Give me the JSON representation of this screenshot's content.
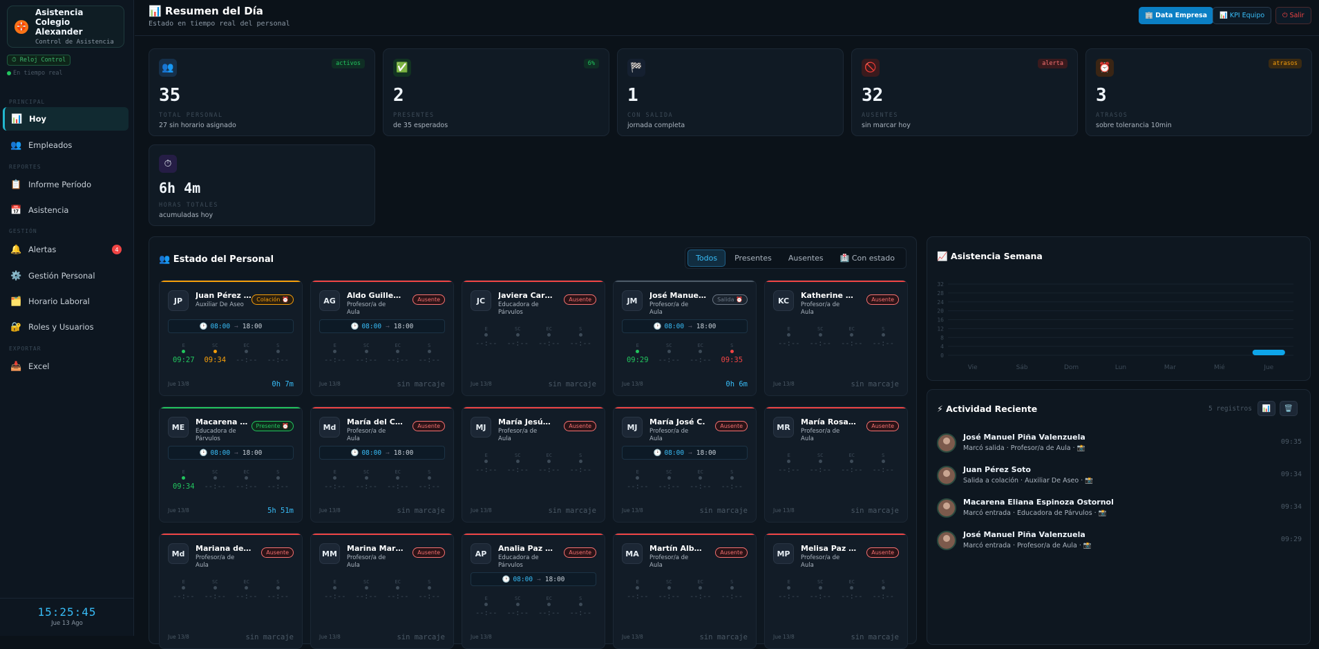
{
  "brand": {
    "title": "Asistencia Colegio Alexander",
    "subtitle": "Control de Asistencia",
    "logo": "🛟"
  },
  "clock_button": "⏱ Reloj Control",
  "live": "En tiempo real",
  "nav": {
    "sec_principal": "PRINCIPAL",
    "sec_reportes": "REPORTES",
    "sec_gestion": "GESTIÓN",
    "sec_exportar": "EXPORTAR",
    "items": [
      {
        "label": "Hoy",
        "icon": "📊"
      },
      {
        "label": "Empleados",
        "icon": "👥"
      },
      {
        "label": "Informe Período",
        "icon": "📋"
      },
      {
        "label": "Asistencia",
        "icon": "📅"
      },
      {
        "label": "Alertas",
        "icon": "🔔",
        "badge": "4"
      },
      {
        "label": "Gestión Personal",
        "icon": "⚙️"
      },
      {
        "label": "Horario Laboral",
        "icon": "🗂️"
      },
      {
        "label": "Roles y Usuarios",
        "icon": "🔐"
      },
      {
        "label": "Excel",
        "icon": "📥"
      }
    ]
  },
  "footer": {
    "time": "15:25:45",
    "date": "Jue 13 Ago"
  },
  "header": {
    "title": "📊 Resumen del Día",
    "subtitle": "Estado en tiempo real del personal",
    "btn_data": "🏢 Data Empresa",
    "btn_kpi": "📊 KPI Equipo",
    "btn_exit": "⏻ Salir"
  },
  "kpis": [
    {
      "icon": "👥",
      "tag": "activos",
      "value": "35",
      "label": "TOTAL PERSONAL",
      "sub": "27 sin horario asignado"
    },
    {
      "icon": "✅",
      "tag": "6%",
      "value": "2",
      "label": "PRESENTES",
      "sub": "de 35 esperados"
    },
    {
      "icon": "🏁",
      "tag": "",
      "value": "1",
      "label": "CON SALIDA",
      "sub": "jornada completa"
    },
    {
      "icon": "🚫",
      "tag": "alerta",
      "value": "32",
      "label": "AUSENTES",
      "sub": "sin marcar hoy"
    },
    {
      "icon": "⏰",
      "tag": "atrasos",
      "value": "3",
      "label": "ATRASOS",
      "sub": "sobre tolerancia 10min"
    },
    {
      "icon": "⏱",
      "tag": "",
      "value": "6h 4m",
      "label": "HORAS TOTALES",
      "sub": "acumuladas hoy"
    }
  ],
  "staff": {
    "title": "👥 Estado del Personal",
    "tabs": [
      "Todos",
      "Presentes",
      "Ausentes",
      "🏥 Con estado"
    ],
    "mark_labels": [
      "E",
      "SC",
      "EC",
      "S"
    ],
    "cards": [
      {
        "initials": "JP",
        "name": "Juan Pérez Soto",
        "role": "Auxiliar De Aseo",
        "badge": "Colación ⏰",
        "kind": "col",
        "sched": true,
        "start": "08:00",
        "end": "18:00",
        "times": [
          "09:27",
          "09:34",
          "--:--",
          "--:--"
        ],
        "date": "Jue 13/8",
        "info": "0h 7m"
      },
      {
        "initials": "AG",
        "name": "Aldo Guillermo",
        "role": "Profesor/a de Aula",
        "badge": "Ausente",
        "kind": "abs",
        "sched": true,
        "start": "08:00",
        "end": "18:00",
        "times": [
          "--:--",
          "--:--",
          "--:--",
          "--:--"
        ],
        "date": "Jue 13/8",
        "info": "sin marcaje"
      },
      {
        "initials": "JC",
        "name": "Javiera Carolina",
        "role": "Educadora de Párvulos",
        "badge": "Ausente",
        "kind": "abs",
        "sched": false,
        "times": [
          "--:--",
          "--:--",
          "--:--",
          "--:--"
        ],
        "date": "Jue 13/8",
        "info": "sin marcaje"
      },
      {
        "initials": "JM",
        "name": "José Manuel Piña",
        "role": "Profesor/a de Aula",
        "badge": "Salida ⏰",
        "kind": "out",
        "sched": true,
        "start": "08:00",
        "end": "18:00",
        "times": [
          "09:29",
          "--:--",
          "--:--",
          "09:35"
        ],
        "date": "Jue 13/8",
        "info": "0h 6m"
      },
      {
        "initials": "KC",
        "name": "Katherine Cecilia",
        "role": "Profesor/a de Aula",
        "badge": "Ausente",
        "kind": "abs",
        "sched": false,
        "times": [
          "--:--",
          "--:--",
          "--:--",
          "--:--"
        ],
        "date": "Jue 13/8",
        "info": "sin marcaje"
      },
      {
        "initials": "ME",
        "name": "Macarena Eliana",
        "role": "Educadora de Párvulos",
        "badge": "Presente ⏰",
        "kind": "pre",
        "sched": true,
        "start": "08:00",
        "end": "18:00",
        "times": [
          "09:34",
          "--:--",
          "--:--",
          "--:--"
        ],
        "date": "Jue 13/8",
        "info": "5h 51m"
      },
      {
        "initials": "Md",
        "name": "María del Carmen",
        "role": "Profesor/a de Aula",
        "badge": "Ausente",
        "kind": "abs",
        "sched": true,
        "start": "08:00",
        "end": "18:00",
        "times": [
          "--:--",
          "--:--",
          "--:--",
          "--:--"
        ],
        "date": "Jue 13/8",
        "info": "sin marcaje"
      },
      {
        "initials": "MJ",
        "name": "María Jesús P.",
        "role": "Profesor/a de Aula",
        "badge": "Ausente",
        "kind": "abs",
        "sched": false,
        "times": [
          "--:--",
          "--:--",
          "--:--",
          "--:--"
        ],
        "date": "Jue 13/8",
        "info": "sin marcaje"
      },
      {
        "initials": "MJ",
        "name": "María José C.",
        "role": "Profesor/a de Aula",
        "badge": "Ausente",
        "kind": "abs",
        "sched": true,
        "start": "08:00",
        "end": "18:00",
        "times": [
          "--:--",
          "--:--",
          "--:--",
          "--:--"
        ],
        "date": "Jue 13/8",
        "info": "sin marcaje"
      },
      {
        "initials": "MR",
        "name": "María Rosario",
        "role": "Profesor/a de Aula",
        "badge": "Ausente",
        "kind": "abs",
        "sched": false,
        "times": [
          "--:--",
          "--:--",
          "--:--",
          "--:--"
        ],
        "date": "Jue 13/8",
        "info": "sin marcaje"
      },
      {
        "initials": "Md",
        "name": "Mariana de L.",
        "role": "Profesor/a de Aula",
        "badge": "Ausente",
        "kind": "abs",
        "sched": false,
        "times": [
          "--:--",
          "--:--",
          "--:--",
          "--:--"
        ],
        "date": "Jue 13/8",
        "info": "sin marcaje"
      },
      {
        "initials": "MM",
        "name": "Marina Margarita",
        "role": "Profesor/a de Aula",
        "badge": "Ausente",
        "kind": "abs",
        "sched": false,
        "times": [
          "--:--",
          "--:--",
          "--:--",
          "--:--"
        ],
        "date": "Jue 13/8",
        "info": "sin marcaje"
      },
      {
        "initials": "AP",
        "name": "Analia Paz M.",
        "role": "Educadora de Párvulos",
        "badge": "Ausente",
        "kind": "abs",
        "sched": true,
        "start": "08:00",
        "end": "18:00",
        "times": [
          "--:--",
          "--:--",
          "--:--",
          "--:--"
        ],
        "date": "Jue 13/8",
        "info": ""
      },
      {
        "initials": "MA",
        "name": "Martín Alberto",
        "role": "Profesor/a de Aula",
        "badge": "Ausente",
        "kind": "abs",
        "sched": false,
        "times": [
          "--:--",
          "--:--",
          "--:--",
          "--:--"
        ],
        "date": "Jue 13/8",
        "info": "sin marcaje"
      },
      {
        "initials": "MP",
        "name": "Melisa Paz Se.",
        "role": "Profesor/a de Aula",
        "badge": "Ausente",
        "kind": "abs",
        "sched": false,
        "times": [
          "--:--",
          "--:--",
          "--:--",
          "--:--"
        ],
        "date": "Jue 13/8",
        "info": "sin marcaje"
      }
    ]
  },
  "week": {
    "title": "📈 Asistencia Semana"
  },
  "chart_data": {
    "type": "bar",
    "categories": [
      "Vie",
      "Sáb",
      "Dom",
      "Lun",
      "Mar",
      "Mié",
      "Jue"
    ],
    "values": [
      0,
      0,
      0,
      0,
      0,
      0,
      2
    ],
    "yticks": [
      0,
      4,
      8,
      12,
      16,
      20,
      24,
      28,
      32
    ],
    "ylim": [
      0,
      32
    ],
    "title": "Asistencia Semana",
    "color": "#0ea5e9"
  },
  "activity": {
    "title": "⚡ Actividad Reciente",
    "count": "5 registros",
    "btn_chart": "📊",
    "btn_trash": "🗑️",
    "items": [
      {
        "name": "José Manuel Piña Valenzuela",
        "desc": "Marcó salida · Profesor/a de Aula · 📸",
        "time": "09:35"
      },
      {
        "name": "Juan Pérez Soto",
        "desc": "Salida a colación · Auxiliar De Aseo · 📸",
        "time": "09:34"
      },
      {
        "name": "Macarena Eliana Espinoza Ostornol",
        "desc": "Marcó entrada · Educadora de Párvulos · 📸",
        "time": "09:34"
      },
      {
        "name": "José Manuel Piña Valenzuela",
        "desc": "Marcó entrada · Profesor/a de Aula · 📸",
        "time": "09:29"
      }
    ]
  },
  "colors": {
    "accent": "#38bdf8",
    "absent": "#ef4444",
    "present": "#22c55e",
    "warn": "#f59e0b"
  }
}
